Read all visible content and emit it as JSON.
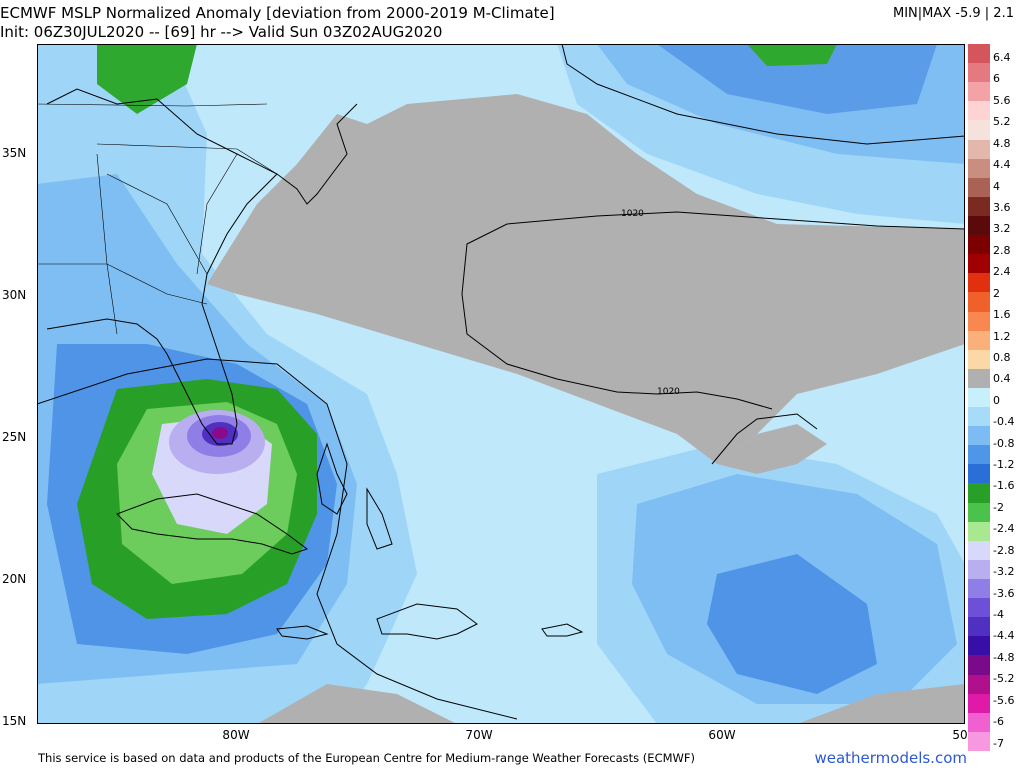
{
  "header": {
    "title": "ECMWF MSLP Normalized Anomaly [deviation from 2000-2019 M-Climate]",
    "subtitle": "Init: 06Z30JUL2020 -- [69] hr --> Valid Sun 03Z02AUG2020",
    "minmax": "MIN|MAX -5.9 | 2.1"
  },
  "axes": {
    "lat_labels": [
      "35N",
      "30N",
      "25N",
      "20N",
      "15N"
    ],
    "lon_labels": [
      "80W",
      "70W",
      "60W",
      "50"
    ]
  },
  "contours": {
    "isobar_label_1": "1020",
    "isobar_label_2": "1020"
  },
  "colorbar": {
    "labels": [
      "6.4",
      "6",
      "5.6",
      "5.2",
      "4.8",
      "4.4",
      "4",
      "3.6",
      "3.2",
      "2.8",
      "2.4",
      "2",
      "1.6",
      "1.2",
      "0.8",
      "0.4",
      "0",
      "-0.4",
      "-0.8",
      "-1.2",
      "-1.6",
      "-2",
      "-2.4",
      "-2.8",
      "-3.2",
      "-3.6",
      "-4",
      "-4.4",
      "-4.8",
      "-5.2",
      "-5.6",
      "-6",
      "-7"
    ],
    "colors": [
      "#d4555b",
      "#e47a80",
      "#f3a3a6",
      "#fdd3d3",
      "#f5e2dc",
      "#e3b7ab",
      "#c98e80",
      "#a96254",
      "#7a2a20",
      "#5a0a0a",
      "#7c0000",
      "#a00000",
      "#e03010",
      "#f0602a",
      "#f88850",
      "#fab07a",
      "#fbd8a8",
      "#b0b0b0",
      "#c8f0fa",
      "#a6dcf8",
      "#7dbcf2",
      "#4e96e8",
      "#2a6ed8",
      "#28a028",
      "#4bc24b",
      "#a8e890",
      "#d8d8fa",
      "#b8aef0",
      "#8f7ee6",
      "#6e50d8",
      "#5030c0",
      "#380ea8",
      "#7a0a8a",
      "#b0108c",
      "#e01aa8",
      "#f060d0",
      "#f898e0"
    ]
  },
  "footer": {
    "credit": "This service is based on data and products of the European Centre for Medium-range Weather Forecasts (ECMWF)",
    "brand": "weathermodels.com"
  }
}
